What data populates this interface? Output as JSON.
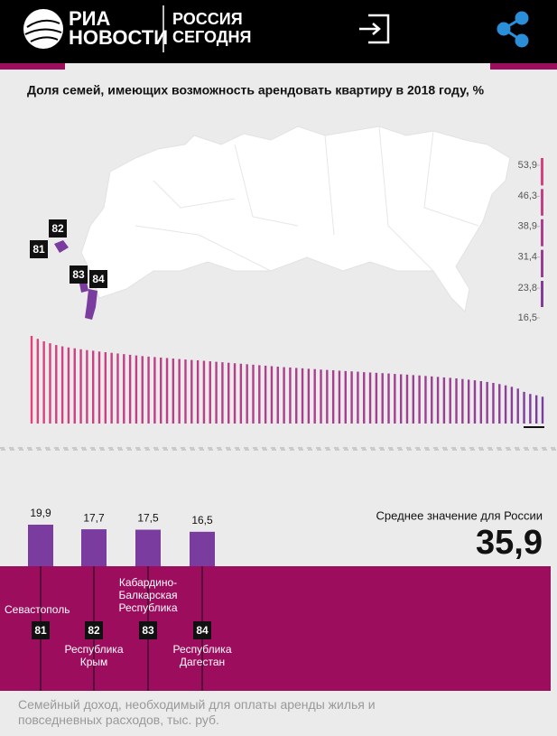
{
  "header": {
    "logo_top": "РИА",
    "logo_bottom": "НОВОСТИ",
    "brand_top": "РОССИЯ",
    "brand_bottom": "СЕГОДНЯ"
  },
  "chart_data": [
    {
      "type": "strip",
      "title": "Доля семей, имеющих возможность арендовать квартиру в 2018 году, %",
      "values": [
        53.9,
        52.1,
        50.6,
        49.4,
        48.3,
        47.5,
        46.8,
        46.3,
        45.7,
        45.2,
        44.8,
        44.3,
        43.9,
        43.5,
        43.1,
        42.7,
        42.3,
        41.9,
        41.5,
        41.2,
        40.9,
        40.6,
        40.3,
        40.0,
        39.7,
        39.4,
        39.1,
        38.9,
        38.6,
        38.3,
        38.0,
        37.7,
        37.4,
        37.1,
        36.8,
        36.5,
        36.2,
        35.9,
        35.6,
        35.3,
        35.0,
        34.7,
        34.5,
        34.2,
        34.0,
        33.7,
        33.5,
        33.2,
        33.0,
        32.8,
        32.5,
        32.3,
        32.1,
        31.9,
        31.6,
        31.4,
        31.2,
        31.0,
        30.8,
        30.5,
        30.3,
        30.1,
        29.8,
        29.6,
        29.3,
        29.0,
        28.7,
        28.4,
        28.1,
        27.8,
        27.4,
        27.0,
        26.6,
        26.1,
        25.6,
        25.0,
        24.3,
        23.5,
        22.6,
        21.5,
        19.5,
        18.2,
        17.4,
        16.5
      ],
      "color_scale": [
        "#e3417c",
        "#7a3c9e"
      ],
      "legend_ticks": [
        {
          "value": 53.9,
          "label": "53,9"
        },
        {
          "value": 46.3,
          "label": "46,3"
        },
        {
          "value": 38.9,
          "label": "38,9"
        },
        {
          "value": 31.4,
          "label": "31,4"
        },
        {
          "value": 23.8,
          "label": "23,8"
        },
        {
          "value": 16.5,
          "label": "16,5"
        }
      ],
      "map_labels": [
        "81",
        "82",
        "83",
        "84"
      ]
    },
    {
      "type": "bar",
      "title": "Семейный доход, необходимый для оплаты аренды жилья и повседневных расходов, тыс. руб.",
      "categories": [
        "Севастополь",
        "Республика Крым",
        "Кабардино-Балкарская Республика",
        "Республика Дагестан"
      ],
      "codes": [
        "81",
        "82",
        "83",
        "84"
      ],
      "values": [
        19.9,
        17.7,
        17.5,
        16.5
      ],
      "value_labels": [
        "19,9",
        "17,7",
        "17,5",
        "16,5"
      ],
      "color": "#7a3c9e",
      "band_color": "#9c0d5e",
      "average": {
        "label": "Среднее значение для России",
        "value": "35,9"
      }
    }
  ]
}
